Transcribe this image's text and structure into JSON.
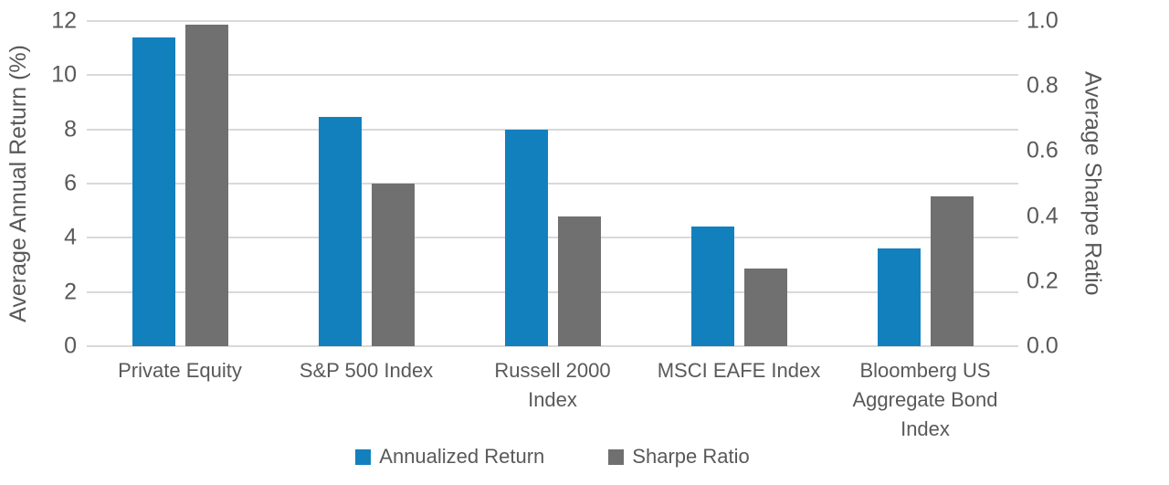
{
  "chart_data": {
    "type": "bar",
    "categories": [
      "Private Equity",
      "S&P 500 Index",
      "Russell 2000 Index",
      "MSCI EAFE Index",
      "Bloomberg US Aggregate Bond Index"
    ],
    "category_lines": [
      [
        "Private Equity"
      ],
      [
        "S&P 500 Index"
      ],
      [
        "Russell 2000",
        "Index"
      ],
      [
        "MSCI EAFE Index"
      ],
      [
        "Bloomberg US",
        "Aggregate Bond",
        "Index"
      ]
    ],
    "series": [
      {
        "name": "Annualized Return",
        "axis": "left",
        "color": "#1380be",
        "values": [
          11.4,
          8.45,
          8.0,
          4.4,
          3.6
        ]
      },
      {
        "name": "Sharpe Ratio",
        "axis": "right",
        "color": "#707070",
        "values": [
          0.99,
          0.5,
          0.4,
          0.24,
          0.46
        ]
      }
    ],
    "left_axis": {
      "label": "Average Annual Return (%)",
      "min": 0,
      "max": 12,
      "ticks": [
        0,
        2,
        4,
        6,
        8,
        10,
        12
      ]
    },
    "right_axis": {
      "label": "Average Sharpe Ratio",
      "min": 0.0,
      "max": 1.0,
      "ticks": [
        "0.0",
        "0.2",
        "0.4",
        "0.6",
        "0.8",
        "1.0"
      ]
    },
    "grid": true,
    "legend_position": "bottom",
    "colors": {
      "gridline": "#d9d9d9",
      "text": "#595959",
      "background": "#ffffff"
    }
  },
  "legend": {
    "items": [
      {
        "label": "Annualized Return",
        "color": "#1380be"
      },
      {
        "label": "Sharpe Ratio",
        "color": "#707070"
      }
    ]
  }
}
